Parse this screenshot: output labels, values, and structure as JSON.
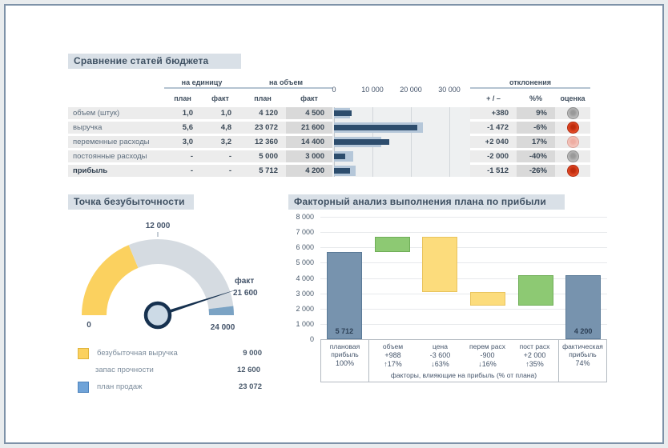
{
  "sections": {
    "comparison": {
      "title": "Сравнение статей бюджета"
    },
    "breakeven": {
      "title": "Точка безубыточности"
    },
    "factor": {
      "title": "Факторный анализ выполнения плана по прибыли"
    }
  },
  "comparison_table": {
    "groups": {
      "per_unit": "на единицу",
      "per_volume": "на объем",
      "deviations": "отклонения"
    },
    "subheaders": {
      "plan": "план",
      "fact": "факт",
      "abs": "+ / –",
      "pct": "%%",
      "eval": "оценка"
    },
    "rows": [
      {
        "label": "объем (штук)",
        "unit_plan": "1,0",
        "unit_fact": "1,0",
        "vol_plan": "4 120",
        "vol_fact": "4 500",
        "dev_abs": "+380",
        "dev_pct": "9%",
        "rating": "gray",
        "bold": false
      },
      {
        "label": "выручка",
        "unit_plan": "5,6",
        "unit_fact": "4,8",
        "vol_plan": "23 072",
        "vol_fact": "21 600",
        "dev_abs": "-1 472",
        "dev_pct": "-6%",
        "rating": "red",
        "bold": false
      },
      {
        "label": "переменные расходы",
        "unit_plan": "3,0",
        "unit_fact": "3,2",
        "vol_plan": "12 360",
        "vol_fact": "14 400",
        "dev_abs": "+2 040",
        "dev_pct": "17%",
        "rating": "pink",
        "bold": false
      },
      {
        "label": "постоянные расходы",
        "unit_plan": "-",
        "unit_fact": "-",
        "vol_plan": "5 000",
        "vol_fact": "3 000",
        "dev_abs": "-2 000",
        "dev_pct": "-40%",
        "rating": "gray",
        "bold": false
      },
      {
        "label": "прибыль",
        "unit_plan": "-",
        "unit_fact": "-",
        "vol_plan": "5 712",
        "vol_fact": "4 200",
        "dev_abs": "-1 512",
        "dev_pct": "-26%",
        "rating": "red",
        "bold": true
      }
    ],
    "rating_styles": {
      "gray": {
        "light": "#c6c6c6",
        "dark": "#999999",
        "border": "#8d8d8d"
      },
      "red": {
        "light": "#ee5430",
        "dark": "#bf2b0c",
        "border": "#b02a0e"
      },
      "pink": {
        "light": "#f7cdc5",
        "dark": "#eeada2",
        "border": "#dba096"
      }
    }
  },
  "chart_data": [
    {
      "type": "bar",
      "title": "Сравнение статей бюджета",
      "orientation": "horizontal",
      "categories": [
        "объем (штук)",
        "выручка",
        "переменные расходы",
        "постоянные расходы",
        "прибыль"
      ],
      "series": [
        {
          "name": "план",
          "color": "#b5c7d9",
          "values": [
            4120,
            23072,
            12360,
            5000,
            5712
          ]
        },
        {
          "name": "факт",
          "color": "#2d4d6d",
          "values": [
            4500,
            21600,
            14400,
            3000,
            4200
          ]
        }
      ],
      "xlim": [
        0,
        35000
      ],
      "xticks": [
        {
          "value": 0,
          "label": "0"
        },
        {
          "value": 10000,
          "label": "10 000"
        },
        {
          "value": 20000,
          "label": "20 000"
        },
        {
          "value": 30000,
          "label": "30 000"
        }
      ],
      "grid": true,
      "legend": false
    },
    {
      "type": "gauge",
      "title": "Точка безубыточности",
      "min": 0,
      "max": 24000,
      "min_label": "0",
      "max_label": "24 000",
      "top_tick": {
        "value": 12000,
        "label": "12 000"
      },
      "needle": {
        "value": 21600,
        "label": "факт",
        "value_label": "21 600",
        "color": "#16314f"
      },
      "segments": [
        {
          "name": "безубыточная выручка",
          "from": 0,
          "to": 9000,
          "color": "#fbd15f"
        },
        {
          "name": "запас прочности",
          "from": 9000,
          "to": 23072,
          "color": "#d5dbe1"
        },
        {
          "name": "план продаж",
          "from": 23072,
          "to": 24000,
          "color": "#7ba3c4"
        }
      ],
      "legend": [
        {
          "label": "безубыточная выручка",
          "value": "9 000",
          "swatch": "#fbd15f",
          "swatch_border": "#e0b43e"
        },
        {
          "label": "запас прочности",
          "value": "12 600",
          "swatch": null,
          "swatch_border": null
        },
        {
          "label": "план продаж",
          "value": "23 072",
          "swatch": "#6fa3d8",
          "swatch_border": "#4f84bd"
        }
      ]
    },
    {
      "type": "waterfall",
      "title": "Факторный анализ выполнения плана по прибыли",
      "ylim": [
        0,
        8000
      ],
      "yticks": [
        {
          "value": 0,
          "label": "0"
        },
        {
          "value": 1000,
          "label": "1 000"
        },
        {
          "value": 2000,
          "label": "2 000"
        },
        {
          "value": 3000,
          "label": "3 000"
        },
        {
          "value": 4000,
          "label": "4 000"
        },
        {
          "value": 5000,
          "label": "5 000"
        },
        {
          "value": 6000,
          "label": "6 000"
        },
        {
          "value": 7000,
          "label": "7 000"
        },
        {
          "value": 8000,
          "label": "8 000"
        }
      ],
      "bars": [
        {
          "label": "плановая прибыль",
          "delta_label": null,
          "pct_label": "100%",
          "from": 0,
          "to": 5712,
          "color_key": "blue",
          "value_label": "5 712"
        },
        {
          "label": "объем",
          "delta_label": "+988",
          "pct_label": "↑17%",
          "from": 5712,
          "to": 6700,
          "color_key": "green",
          "value_label": null
        },
        {
          "label": "цена",
          "delta_label": "-3 600",
          "pct_label": "↓63%",
          "from": 6700,
          "to": 3100,
          "color_key": "yellow",
          "value_label": null
        },
        {
          "label": "перем расх",
          "delta_label": "-900",
          "pct_label": "↓16%",
          "from": 3100,
          "to": 2200,
          "color_key": "yellow",
          "value_label": null
        },
        {
          "label": "пост расх",
          "delta_label": "+2 000",
          "pct_label": "↑35%",
          "from": 2200,
          "to": 4200,
          "color_key": "green",
          "value_label": null
        },
        {
          "label": "фактическая прибыль",
          "delta_label": null,
          "pct_label": "74%",
          "from": 0,
          "to": 4200,
          "color_key": "blue",
          "value_label": "4 200"
        }
      ],
      "colors": {
        "blue": {
          "fill": "#7793ae",
          "stroke": "#5a7a97"
        },
        "green": {
          "fill": "#8dc973",
          "stroke": "#6fae57"
        },
        "yellow": {
          "fill": "#fcdc7c",
          "stroke": "#e9c45e"
        }
      },
      "footnote": "факторы, влияющие на прибыль (% от плана)",
      "grid": true
    }
  ]
}
